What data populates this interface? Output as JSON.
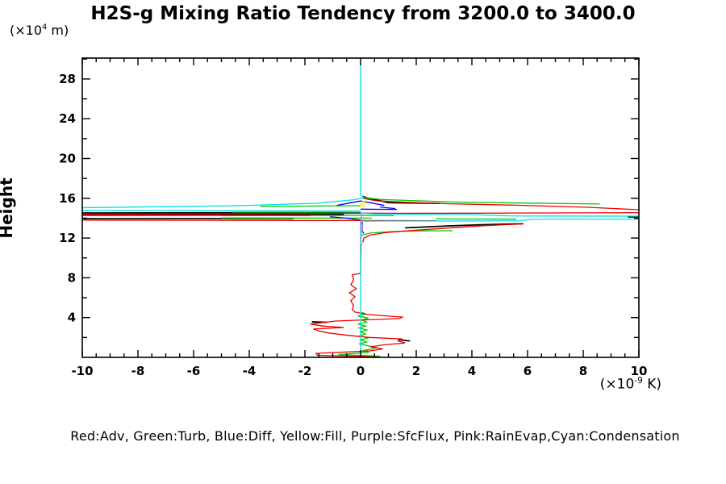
{
  "title": "H2S-g Mixing Ratio Tendency from 3200.0 to 3400.0",
  "y_axis_label": "Height",
  "y_unit": {
    "prefix": "(×10",
    "exp": "4",
    "suffix": " m)"
  },
  "x_unit": {
    "prefix": "(×10",
    "exp": "-9",
    "suffix": " K)"
  },
  "legend": "Red:Adv, Green:Turb, Blue:Diff, Yellow:Fill, Purple:SfcFlux, Pink:RainEvap,Cyan:Condensation",
  "chart_data": {
    "type": "line",
    "title": "H2S-g Mixing Ratio Tendency from 3200.0 to 3400.0",
    "xlabel": "(×10^-9 K)",
    "ylabel": "Height (×10^4 m)",
    "xlim": [
      -10,
      10
    ],
    "ylim": [
      0,
      30.1
    ],
    "grid": false,
    "legend_position": "bottom-text-line",
    "x_ticks": {
      "major_step": 2,
      "minor_step": 0.5,
      "major_labels": [
        "-10",
        "-8",
        "-6",
        "-4",
        "-2",
        "0",
        "2",
        "4",
        "6",
        "8",
        "10"
      ]
    },
    "y_ticks": {
      "major_step": 4,
      "minor_step": 2,
      "major_labels": [
        "4",
        "8",
        "12",
        "16",
        "20",
        "24",
        "28"
      ]
    },
    "series": [
      {
        "name": "Black (unlabeled net curve)",
        "color": "#000000",
        "width": 1.7,
        "segments": [
          [
            [
              0.08,
              16.18
            ],
            [
              0.4,
              15.9
            ],
            [
              0.8,
              15.7
            ],
            [
              1.0,
              15.55
            ],
            [
              2.85,
              15.48
            ]
          ],
          [
            [
              -10,
              14.52
            ],
            [
              -0.4,
              14.56
            ]
          ],
          [
            [
              -10,
              14.38
            ],
            [
              -3.2,
              14.4
            ],
            [
              -0.6,
              14.45
            ]
          ],
          [
            [
              -10,
              14.3
            ],
            [
              -5,
              14.32
            ],
            [
              -0.6,
              14.33
            ]
          ],
          [
            [
              -10,
              13.95
            ],
            [
              -2.4,
              13.97
            ]
          ],
          [
            [
              1.6,
              13.02
            ],
            [
              3.1,
              13.22
            ],
            [
              4.4,
              13.35
            ],
            [
              5.85,
              13.44
            ]
          ],
          [
            [
              9.6,
              14.12
            ],
            [
              10,
              14.12
            ]
          ],
          [
            [
              1.35,
              1.78
            ],
            [
              1.78,
              1.65
            ]
          ],
          [
            [
              -1.75,
              3.58
            ],
            [
              -1.2,
              3.52
            ]
          ]
        ]
      },
      {
        "name": "Green:Turb",
        "color": "#00cc00",
        "width": 1.3,
        "segments": [
          [
            [
              0.05,
              16.08
            ],
            [
              0.75,
              15.88
            ],
            [
              1.7,
              15.78
            ],
            [
              3.4,
              15.62
            ],
            [
              5.7,
              15.52
            ],
            [
              8.6,
              15.42
            ]
          ],
          [
            [
              -3.6,
              15.18
            ],
            [
              -1.4,
              15.22
            ],
            [
              0,
              15.25
            ]
          ],
          [
            [
              -4.6,
              14.6
            ],
            [
              -1,
              14.6
            ],
            [
              0,
              14.58
            ]
          ],
          [
            [
              -5,
              14.27
            ],
            [
              -0.8,
              14.27
            ],
            [
              1.2,
              14.25
            ]
          ],
          [
            [
              -5,
              14.02
            ],
            [
              0.4,
              14.0
            ]
          ],
          [
            [
              2.7,
              13.92
            ],
            [
              5.6,
              13.9
            ]
          ],
          [
            [
              0,
              12.25
            ],
            [
              0.35,
              12.5
            ],
            [
              1.1,
              12.65
            ],
            [
              2.3,
              12.72
            ],
            [
              3.3,
              12.74
            ]
          ],
          [
            [
              0.05,
              4.55
            ],
            [
              0.18,
              4.35
            ],
            [
              -0.1,
              4.15
            ],
            [
              0.28,
              3.95
            ],
            [
              0.05,
              3.75
            ],
            [
              0.22,
              3.55
            ],
            [
              -0.1,
              3.35
            ],
            [
              0.18,
              3.15
            ],
            [
              -0.05,
              2.95
            ],
            [
              0.22,
              2.75
            ],
            [
              0,
              2.55
            ],
            [
              0.18,
              2.35
            ],
            [
              -0.05,
              2.15
            ],
            [
              0.28,
              1.95
            ],
            [
              0,
              1.75
            ],
            [
              0.22,
              1.55
            ],
            [
              -0.05,
              1.35
            ],
            [
              0.55,
              1.0
            ],
            [
              0.45,
              0.85
            ],
            [
              0.12,
              0.7
            ],
            [
              0.3,
              0.5
            ],
            [
              -0.8,
              0.28
            ],
            [
              0.7,
              0.12
            ],
            [
              0.12,
              0.02
            ]
          ]
        ]
      },
      {
        "name": "Blue:Diff",
        "color": "#0000ff",
        "width": 1.3,
        "segments": [
          [
            [
              -0.85,
              15.28
            ],
            [
              -0.35,
              15.55
            ],
            [
              0,
              15.72
            ],
            [
              0.35,
              15.55
            ],
            [
              0.85,
              15.28
            ]
          ],
          [
            [
              0.7,
              15.12
            ],
            [
              1.25,
              14.95
            ]
          ],
          [
            [
              0,
              14.9
            ],
            [
              1.3,
              14.88
            ]
          ],
          [
            [
              -0.8,
              14.5
            ],
            [
              1.3,
              14.48
            ]
          ],
          [
            [
              -1.1,
              14.15
            ],
            [
              -0.55,
              14.0
            ],
            [
              -0.2,
              13.88
            ],
            [
              0,
              13.8
            ]
          ],
          [
            [
              0.06,
              13.6
            ],
            [
              0.06,
              12.7
            ],
            [
              0.12,
              12.45
            ]
          ]
        ]
      },
      {
        "name": "Yellow:Fill",
        "color": "#ffee00",
        "width": 1.3,
        "segments": [
          [
            [
              0.06,
              15.72
            ],
            [
              0.18,
              15.55
            ],
            [
              0.02,
              15.4
            ],
            [
              0.15,
              15.25
            ],
            [
              0.06,
              15.1
            ]
          ]
        ]
      },
      {
        "name": "Red:Adv",
        "color": "#ee0000",
        "width": 1.3,
        "segments": [
          [
            [
              0.08,
              16.0
            ],
            [
              0.55,
              15.75
            ],
            [
              1.6,
              15.6
            ],
            [
              3.2,
              15.45
            ],
            [
              5.6,
              15.3
            ],
            [
              8.1,
              15.1
            ],
            [
              10,
              14.85
            ]
          ],
          [
            [
              10,
              14.55
            ],
            [
              4,
              14.5
            ],
            [
              0,
              14.48
            ],
            [
              -4,
              14.45
            ],
            [
              -10,
              14.42
            ]
          ],
          [
            [
              -10,
              14.27
            ],
            [
              -5.5,
              14.28
            ],
            [
              -1.8,
              14.28
            ]
          ],
          [
            [
              -10,
              13.8
            ],
            [
              -4,
              13.78
            ],
            [
              0,
              13.76
            ],
            [
              2.7,
              13.74
            ]
          ],
          [
            [
              0.08,
              11.55
            ],
            [
              0.12,
              12.0
            ],
            [
              0.35,
              12.3
            ],
            [
              0.9,
              12.55
            ],
            [
              1.8,
              12.75
            ],
            [
              3.1,
              13.0
            ],
            [
              4.5,
              13.25
            ],
            [
              5.5,
              13.38
            ],
            [
              5.85,
              13.42
            ]
          ],
          [
            [
              0.02,
              11.5
            ],
            [
              0,
              8.45
            ],
            [
              -0.3,
              8.3
            ],
            [
              -0.25,
              7.8
            ],
            [
              -0.35,
              7.3
            ],
            [
              -0.15,
              6.9
            ],
            [
              -0.4,
              6.5
            ],
            [
              -0.2,
              6.1
            ],
            [
              -0.35,
              5.7
            ],
            [
              -0.25,
              5.2
            ],
            [
              -0.3,
              4.8
            ],
            [
              -0.2,
              4.55
            ],
            [
              0.3,
              4.3
            ],
            [
              1.5,
              4.05
            ],
            [
              1.4,
              3.9
            ],
            [
              -0.9,
              3.65
            ],
            [
              -1.8,
              3.35
            ],
            [
              -1.35,
              3.15
            ],
            [
              -0.6,
              3.0
            ],
            [
              -1.7,
              2.85
            ],
            [
              -1.5,
              2.65
            ],
            [
              -1.15,
              2.45
            ],
            [
              -0.55,
              2.25
            ],
            [
              0.3,
              2.0
            ],
            [
              1.5,
              1.85
            ],
            [
              1.35,
              1.65
            ],
            [
              1.6,
              1.45
            ],
            [
              0.8,
              1.25
            ],
            [
              0.35,
              1.05
            ],
            [
              0.8,
              0.85
            ],
            [
              0.35,
              0.65
            ],
            [
              -1.6,
              0.4
            ],
            [
              -1.55,
              0.2
            ],
            [
              0.15,
              0.1
            ],
            [
              0.6,
              0.02
            ]
          ]
        ]
      },
      {
        "name": "Cyan:Condensation",
        "color": "#00e0e0",
        "width": 1.3,
        "segments": [
          [
            [
              0,
              30.1
            ],
            [
              0,
              16.35
            ]
          ],
          [
            [
              0,
              16.35
            ],
            [
              0.12,
              16.05
            ],
            [
              -0.25,
              15.85
            ],
            [
              -1.6,
              15.5
            ],
            [
              -4.4,
              15.25
            ],
            [
              -10,
              15.05
            ]
          ],
          [
            [
              -10,
              14.78
            ],
            [
              -5,
              14.76
            ],
            [
              0,
              14.72
            ]
          ],
          [
            [
              0,
              14.72
            ],
            [
              0,
              14.5
            ],
            [
              0.5,
              14.42
            ],
            [
              4,
              14.35
            ],
            [
              5.5,
              14.22
            ],
            [
              10,
              14.2
            ]
          ],
          [
            [
              10,
              13.9
            ],
            [
              6.2,
              13.88
            ],
            [
              5.6,
              13.72
            ],
            [
              0,
              13.7
            ]
          ],
          [
            [
              0,
              13.7
            ],
            [
              0,
              0
            ]
          ]
        ]
      },
      {
        "name": "Purple:SfcFlux",
        "color": "#bb77ee",
        "width": 1.3,
        "segments": [
          [
            [
              0.02,
              14.6
            ],
            [
              0.02,
              11.6
            ]
          ]
        ]
      },
      {
        "name": "Pink:RainEvap",
        "color": "#ff88cc",
        "width": 1.3,
        "segments": [
          [
            [
              0.05,
              13.45
            ],
            [
              0.05,
              12.55
            ]
          ]
        ]
      }
    ]
  }
}
